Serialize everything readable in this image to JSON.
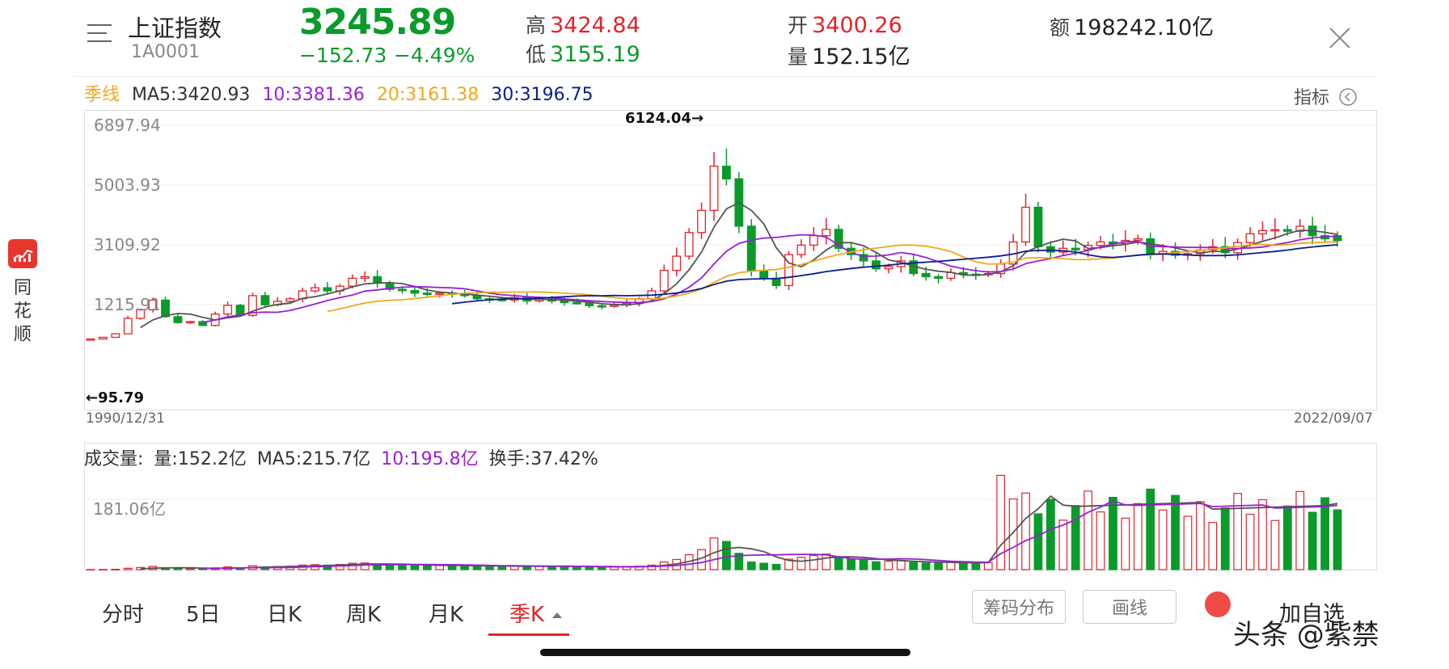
{
  "sidebar_app": {
    "name": "同花顺"
  },
  "header": {
    "name": "上证指数",
    "code": "1A0001",
    "last": "3245.89",
    "change": "−152.73",
    "change_pct": "−4.49%",
    "high_label": "高",
    "high": "3424.84",
    "low_label": "低",
    "low": "3155.19",
    "open_label": "开",
    "open": "3400.26",
    "volume_label": "量",
    "volume": "152.15亿",
    "amount_label": "额",
    "amount": "198242.10亿"
  },
  "ma_legend": {
    "period": "季线",
    "ma5": "MA5:3420.93",
    "ma10": "10:3381.36",
    "ma20": "20:3161.38",
    "ma30": "30:3196.75"
  },
  "indicator_button": "指标",
  "kline": {
    "y_ticks": [
      "6897.94",
      "5003.93",
      "3109.92",
      "1215.91"
    ],
    "max_marker": "6124.04→",
    "min_marker": "←95.79",
    "start_date": "1990/12/31",
    "end_date": "2022/09/07"
  },
  "volume_panel": {
    "title": "成交量:",
    "vol": "量:152.2亿",
    "ma5": "MA5:215.7亿",
    "ma10": "10:195.8亿",
    "turnover": "换手:37.42%",
    "y_tick": "181.06亿"
  },
  "tabs": [
    "分时",
    "5日",
    "日K",
    "周K",
    "月K",
    "季K"
  ],
  "active_tab": "季K",
  "buttons": {
    "chips": "筹码分布",
    "draw": "画线",
    "add_watch": "加自选"
  },
  "watermark": "头条 @紫禁",
  "colors": {
    "up": "#e3232a",
    "down": "#0a9b2a",
    "ma5": "#555555",
    "ma10": "#9b1fd6",
    "ma20": "#f0a81c",
    "ma30": "#0b1f8a"
  },
  "chart_data": {
    "type": "candlestick",
    "interval": "quarter",
    "x": [
      "1990/12/31",
      "2022/09/07"
    ],
    "y_axis_ticks": [
      6897.94,
      5003.93,
      3109.92,
      1215.91
    ],
    "max": 6124.04,
    "min": 95.79,
    "last_candle": {
      "open": 3400.26,
      "high": 3424.84,
      "low": 3155.19,
      "close": 3245.89
    },
    "closes": [
      127,
      180,
      292,
      780,
      1050,
      1358,
      833,
      647,
      678,
      555,
      917,
      1194,
      877,
      1500,
      1210,
      1320,
      1400,
      1650,
      1750,
      1650,
      1800,
      2050,
      2100,
      1900,
      1700,
      1660,
      1580,
      1540,
      1580,
      1555,
      1500,
      1400,
      1380,
      1360,
      1440,
      1330,
      1410,
      1330,
      1280,
      1270,
      1180,
      1160,
      1200,
      1260,
      1400,
      1650,
      2300,
      2750,
      3500,
      4200,
      5600,
      5200,
      3700,
      2300,
      2050,
      1820,
      2800,
      3100,
      3400,
      3600,
      3000,
      2800,
      2600,
      2350,
      2420,
      2600,
      2200,
      2100,
      2050,
      2230,
      2180,
      2170,
      2200,
      2500,
      3200,
      4300,
      3050,
      2880,
      3000,
      2950,
      3090,
      3200,
      3150,
      3250,
      3300,
      2820,
      2900,
      2780,
      2830,
      2950,
      3050,
      2860,
      3180,
      3460,
      3560,
      3590,
      3540,
      3700,
      3400,
      3300,
      3245
    ],
    "volume_yi": {
      "tick": 181.06,
      "last": 152.2,
      "ma5": 215.7,
      "ma10": 195.8
    }
  }
}
